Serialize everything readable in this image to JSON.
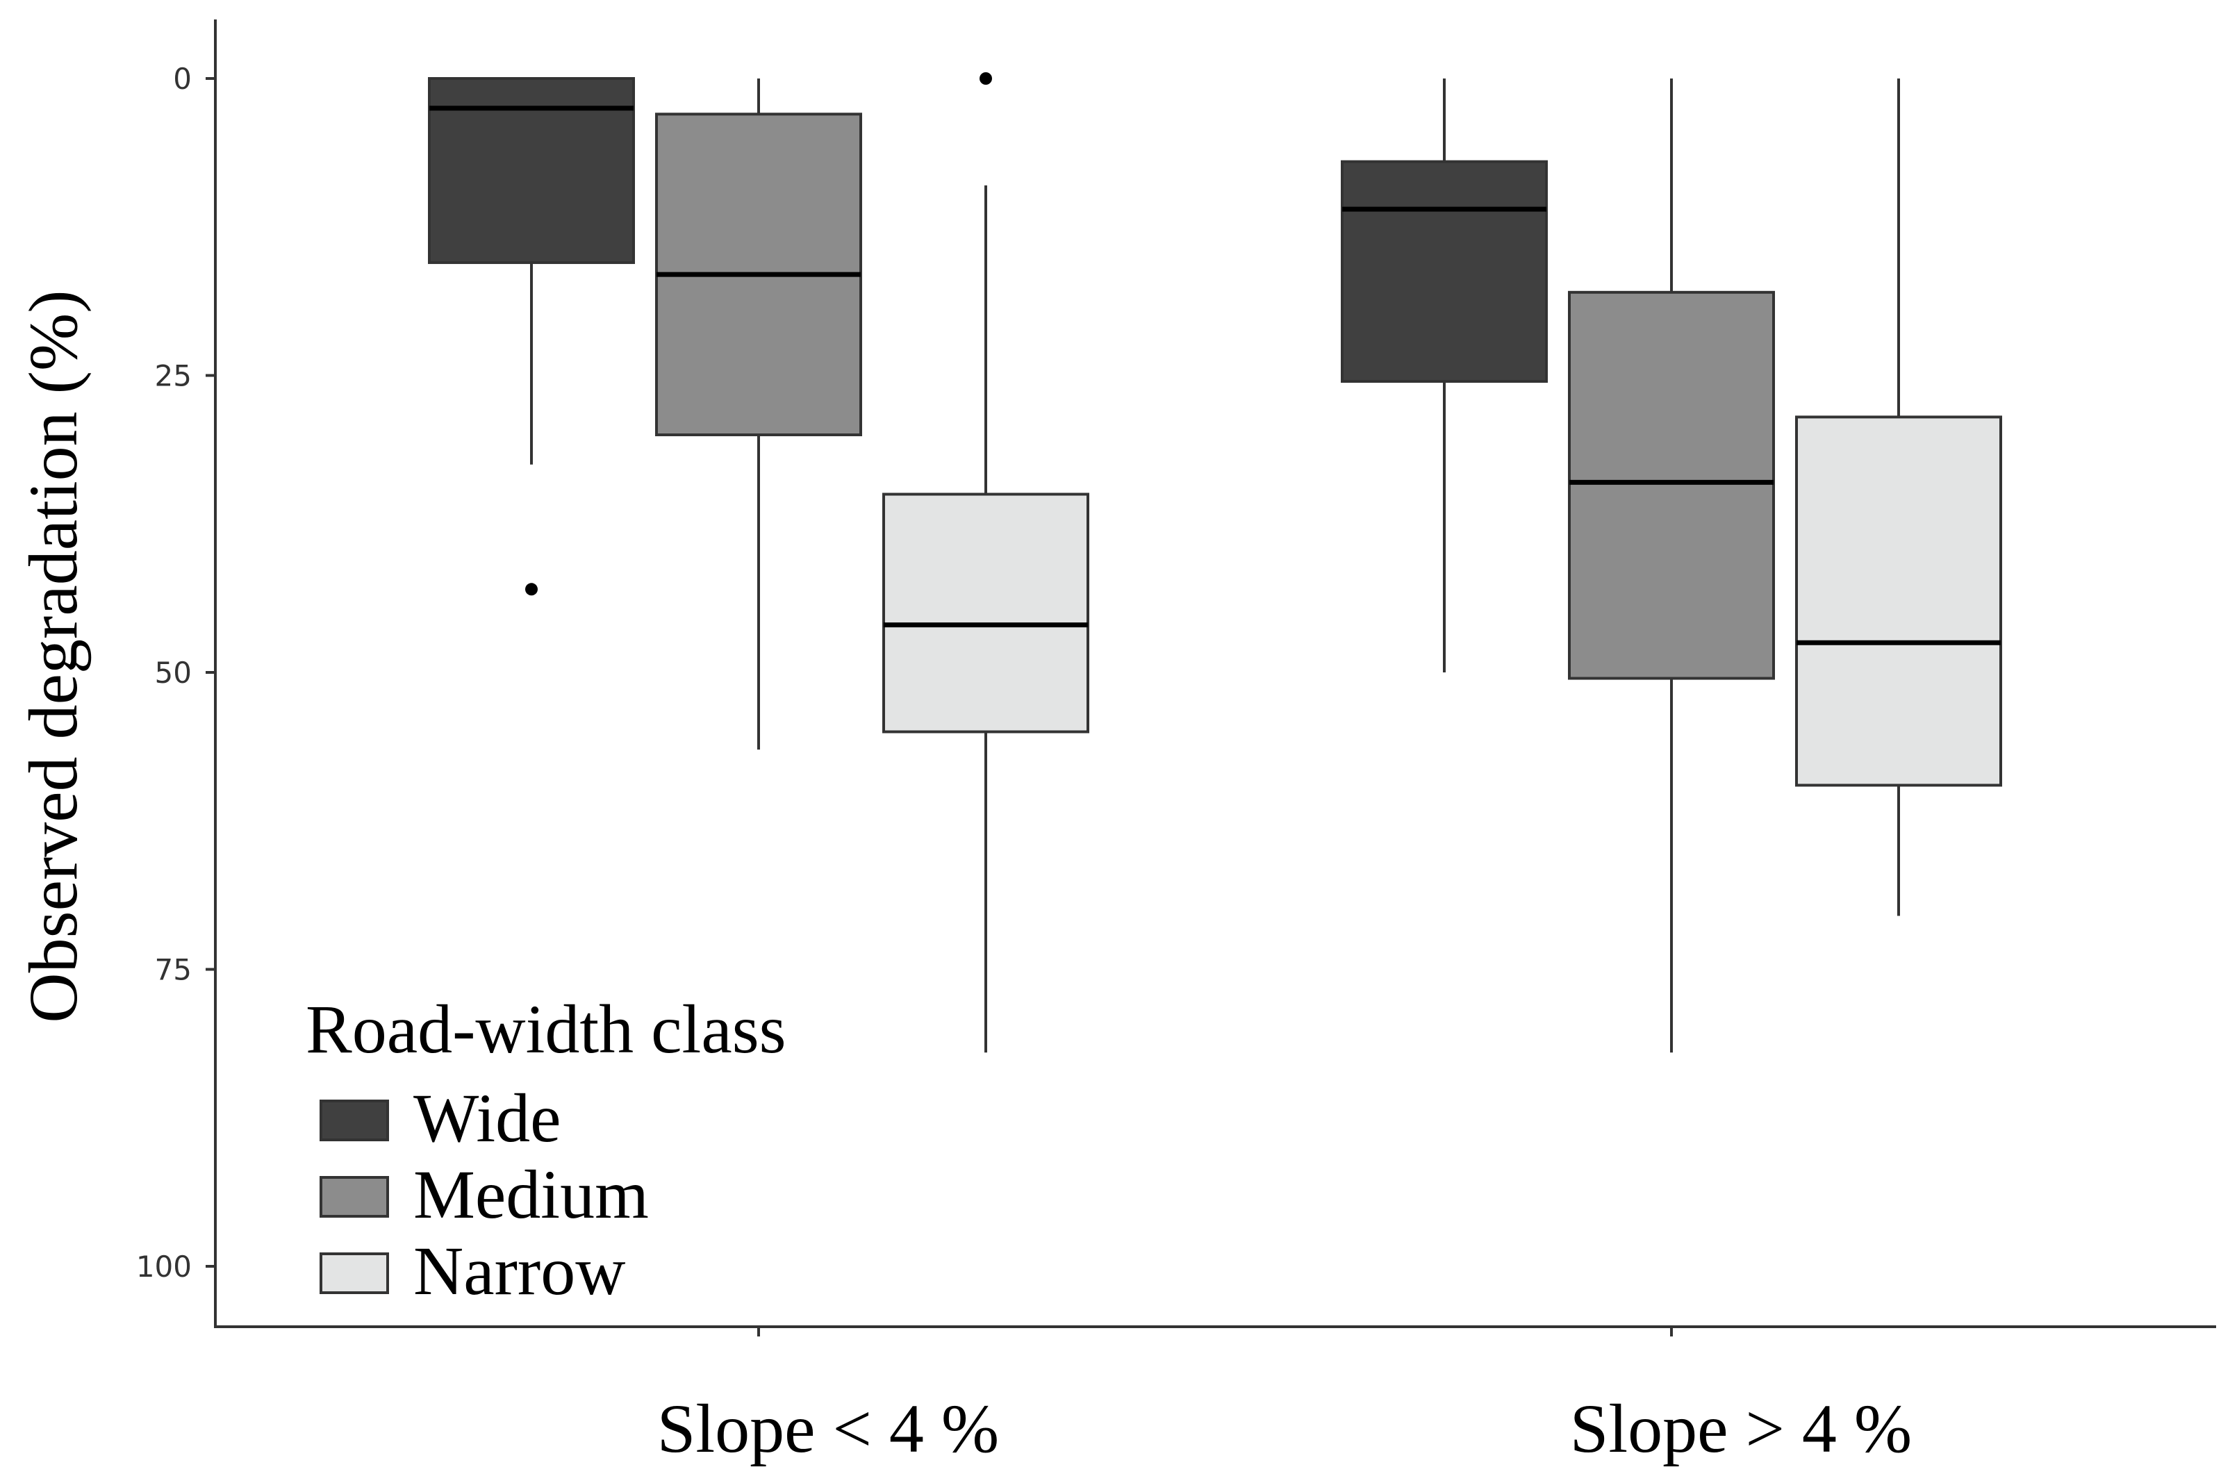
{
  "chart_data": {
    "type": "box",
    "ylabel": "Observed degradation (%)",
    "xlabel": "",
    "y_reversed": true,
    "ylim": [
      0,
      105
    ],
    "yticks": [
      0,
      25,
      50,
      75,
      100
    ],
    "grid": false,
    "legend": {
      "title": "Road-width class",
      "placement": "bottom-left",
      "entries": [
        {
          "name": "Wide",
          "color": "#404040"
        },
        {
          "name": "Medium",
          "color": "#8c8c8c"
        },
        {
          "name": "Narrow",
          "color": "#e3e4e4"
        }
      ]
    },
    "categories": [
      "Slope < 4 %",
      "Slope > 4 %"
    ],
    "series": [
      {
        "name": "Wide",
        "color": "#404040",
        "boxes": [
          {
            "whisker_low": 0,
            "q1": 0,
            "median": 2.5,
            "q3": 15.5,
            "whisker_high": 32.5,
            "outliers": [
              43
            ]
          },
          {
            "whisker_low": 0,
            "q1": 7,
            "median": 11,
            "q3": 25.5,
            "whisker_high": 50,
            "outliers": []
          }
        ]
      },
      {
        "name": "Medium",
        "color": "#8c8c8c",
        "boxes": [
          {
            "whisker_low": 0,
            "q1": 3,
            "median": 16.5,
            "q3": 30,
            "whisker_high": 56.5,
            "outliers": []
          },
          {
            "whisker_low": 0,
            "q1": 18,
            "median": 34,
            "q3": 50.5,
            "whisker_high": 82,
            "outliers": []
          }
        ]
      },
      {
        "name": "Narrow",
        "color": "#e3e4e4",
        "boxes": [
          {
            "whisker_low": 9,
            "q1": 35,
            "median": 46,
            "q3": 55,
            "whisker_high": 82,
            "outliers": [
              0
            ]
          },
          {
            "whisker_low": 0,
            "q1": 28.5,
            "median": 47.5,
            "q3": 59.5,
            "whisker_high": 70.5,
            "outliers": []
          }
        ]
      }
    ]
  }
}
